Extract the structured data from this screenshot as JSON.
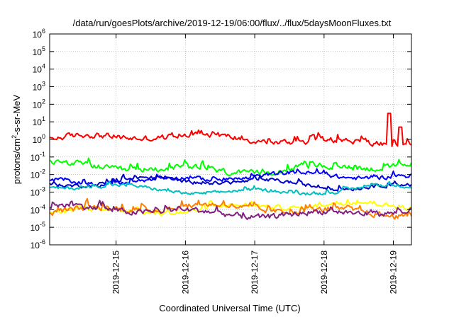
{
  "chart_data": {
    "type": "line",
    "title": "/data/run/goesPlots/archive/2019-12-19/06:00/flux/../flux/5daysMoonFluxes.txt",
    "xlabel": "Coordinated Universal Time (UTC)",
    "ylabel": {
      "base": "protons/cm",
      "sup": "2",
      "rest": "-s-sr-MeV"
    },
    "y_scale": "log",
    "ylim": [
      1e-06,
      1000000.0
    ],
    "y_ticks": [
      {
        "base": "10",
        "exp": "-6",
        "value": 1e-06
      },
      {
        "base": "10",
        "exp": "-5",
        "value": 1e-05
      },
      {
        "base": "10",
        "exp": "-4",
        "value": 0.0001
      },
      {
        "base": "10",
        "exp": "-3",
        "value": 0.001
      },
      {
        "base": "10",
        "exp": "-2",
        "value": 0.01
      },
      {
        "base": "10",
        "exp": "-1",
        "value": 0.1
      },
      {
        "base": "10",
        "exp": "0",
        "value": 1
      },
      {
        "base": "10",
        "exp": "1",
        "value": 10
      },
      {
        "base": "10",
        "exp": "2",
        "value": 100
      },
      {
        "base": "10",
        "exp": "3",
        "value": 1000
      },
      {
        "base": "10",
        "exp": "4",
        "value": 10000
      },
      {
        "base": "10",
        "exp": "5",
        "value": 100000
      },
      {
        "base": "10",
        "exp": "6",
        "value": 1000000
      }
    ],
    "x_range_days": [
      "2019-12-14T01:00",
      "2019-12-19T06:15"
    ],
    "x_ticks": [
      "2019-12-15",
      "2019-12-16",
      "2019-12-17",
      "2019-12-18",
      "2019-12-19"
    ],
    "grid": true,
    "series": [
      {
        "color": "#ff0000",
        "base": 1.0,
        "spread": 0.55,
        "spikes": [
          [
            0.94,
            30
          ],
          [
            0.97,
            5
          ]
        ]
      },
      {
        "color": "#00ff00",
        "base": 0.025,
        "spread": 0.55,
        "spikes": []
      },
      {
        "color": "#0000ff",
        "base": 0.006,
        "spread": 0.4,
        "spikes": []
      },
      {
        "color": "#0000cc",
        "base": 0.003,
        "spread": 0.35,
        "spikes": []
      },
      {
        "color": "#00c0c0",
        "base": 0.0015,
        "spread": 0.3,
        "spikes": []
      },
      {
        "color": "#ffff00",
        "base": 0.00012,
        "spread": 0.4,
        "spikes": []
      },
      {
        "color": "#ff8000",
        "base": 9e-05,
        "spread": 0.55,
        "spikes": []
      },
      {
        "color": "#802080",
        "base": 8e-05,
        "spread": 0.55,
        "spikes": []
      }
    ]
  }
}
